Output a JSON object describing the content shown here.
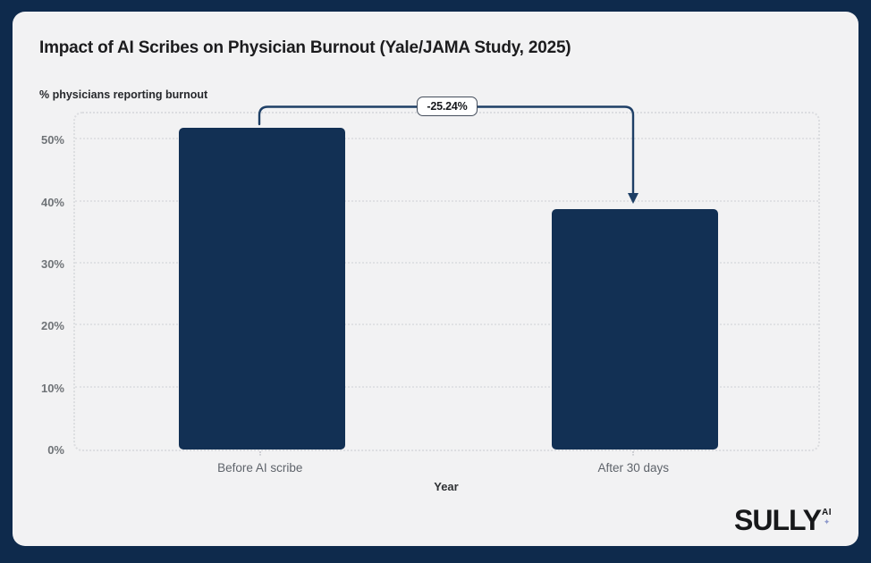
{
  "colors": {
    "background": "#0e2a4c",
    "card": "#f2f2f3",
    "bar": "#123054",
    "arrow": "#1e3f66",
    "grid": "#e0e1e4",
    "annotation_border": "#454e5c"
  },
  "chart_data": {
    "type": "bar",
    "title": "Impact of AI Scribes on Physician Burnout (Yale/JAMA Study, 2025)",
    "ylabel": "% physicians reporting burnout",
    "xlabel": "Year",
    "categories": [
      "Before AI scribe",
      "After 30 days"
    ],
    "values": [
      51.9,
      38.8
    ],
    "yticks": [
      0,
      10,
      20,
      30,
      40,
      50
    ],
    "ytick_labels": [
      "0%",
      "10%",
      "20%",
      "30%",
      "40%",
      "50%"
    ],
    "ylim": [
      0,
      54.8
    ],
    "grid": "horizontal-dotted",
    "legend": "none",
    "bar_color": "#123054",
    "annotation": {
      "label": "-25.24%",
      "from": "Before AI scribe",
      "to": "After 30 days",
      "meaning": "relative decrease between bars"
    }
  },
  "footer": {
    "logo_text": "SULLY",
    "logo_superscript": "AI",
    "logo_sparkle": "✦"
  }
}
